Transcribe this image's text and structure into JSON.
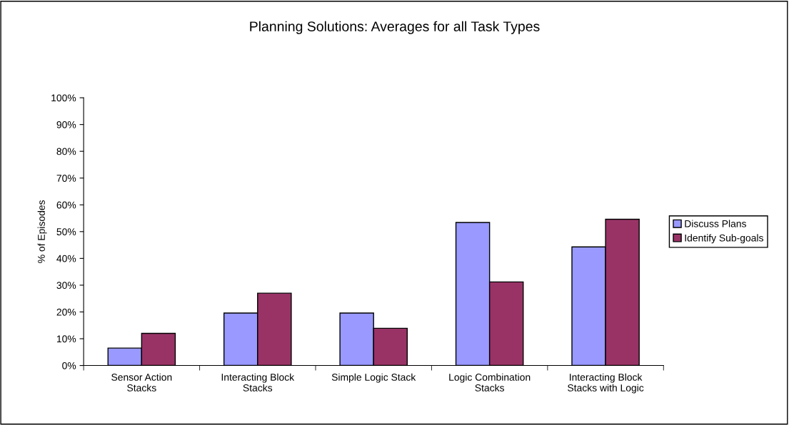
{
  "chart_data": {
    "type": "bar",
    "title": "Planning Solutions: Averages for all Task Types",
    "ylabel": "% of Episodes",
    "categories": [
      "Sensor Action\nStacks",
      "Interacting Block\nStacks",
      "Simple Logic Stack",
      "Logic Combination\nStacks",
      "Interacting Block\nStacks with Logic"
    ],
    "series": [
      {
        "name": "Discuss Plans",
        "color": "#9999ff",
        "values": [
          0.065,
          0.196,
          0.196,
          0.534,
          0.443
        ]
      },
      {
        "name": "Identify Sub-goals",
        "color": "#993366",
        "values": [
          0.12,
          0.27,
          0.139,
          0.312,
          0.546
        ]
      }
    ],
    "ylim": [
      0,
      1
    ],
    "yticks": [
      {
        "value": 0,
        "label": "0%"
      },
      {
        "value": 0.1,
        "label": "10%"
      },
      {
        "value": 0.2,
        "label": "20%"
      },
      {
        "value": 0.3,
        "label": "30%"
      },
      {
        "value": 0.4,
        "label": "40%"
      },
      {
        "value": 0.5,
        "label": "50%"
      },
      {
        "value": 0.6,
        "label": "60%"
      },
      {
        "value": 0.7,
        "label": "70%"
      },
      {
        "value": 0.8,
        "label": "80%"
      },
      {
        "value": 0.9,
        "label": "90%"
      },
      {
        "value": 1,
        "label": "100%"
      }
    ],
    "grid": false,
    "legend": "right"
  }
}
